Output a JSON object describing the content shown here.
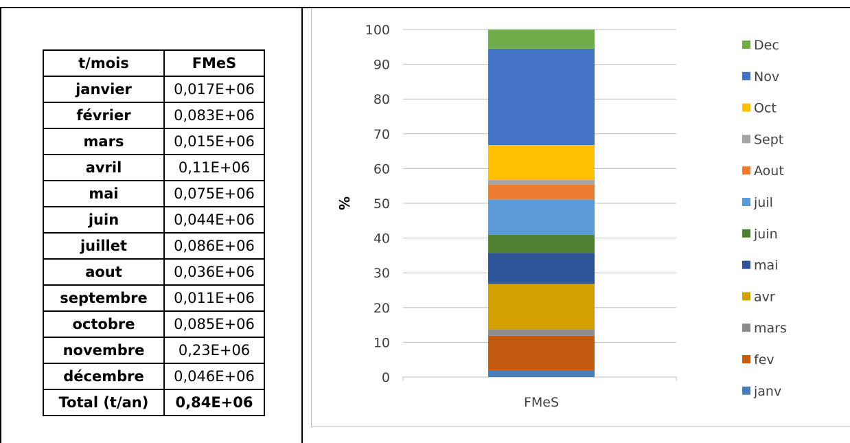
{
  "table": {
    "headers": [
      "t/mois",
      "FMeS"
    ],
    "rows": [
      {
        "month": "janvier",
        "value": "0,017E+06"
      },
      {
        "month": "février",
        "value": "0,083E+06"
      },
      {
        "month": "mars",
        "value": "0,015E+06"
      },
      {
        "month": "avril",
        "value": "0,11E+06"
      },
      {
        "month": "mai",
        "value": "0,075E+06"
      },
      {
        "month": "juin",
        "value": "0,044E+06"
      },
      {
        "month": "juillet",
        "value": "0,086E+06"
      },
      {
        "month": "aout",
        "value": "0,036E+06"
      },
      {
        "month": "septembre",
        "value": "0,011E+06"
      },
      {
        "month": "octobre",
        "value": "0,085E+06"
      },
      {
        "month": "novembre",
        "value": "0,23E+06"
      },
      {
        "month": "décembre",
        "value": "0,046E+06"
      }
    ],
    "total": {
      "month": "Total (t/an)",
      "value": "0,84E+06"
    }
  },
  "chart_data": {
    "type": "bar",
    "stacked": true,
    "categories": [
      "FMeS"
    ],
    "ylabel": "%",
    "xlabel": "",
    "ylim": [
      0,
      100
    ],
    "yticks": [
      0,
      10,
      20,
      30,
      40,
      50,
      60,
      70,
      80,
      90,
      100
    ],
    "grid": true,
    "legend_position": "right",
    "series": [
      {
        "name": "janv",
        "values": [
          2.0
        ],
        "color": "#4a7ebb"
      },
      {
        "name": "fev",
        "values": [
          9.9
        ],
        "color": "#c55a11"
      },
      {
        "name": "mars",
        "values": [
          1.8
        ],
        "color": "#8c8c8c"
      },
      {
        "name": "avr",
        "values": [
          13.1
        ],
        "color": "#d4a000"
      },
      {
        "name": "mai",
        "values": [
          8.9
        ],
        "color": "#2e5597"
      },
      {
        "name": "juin",
        "values": [
          5.2
        ],
        "color": "#4f7f30"
      },
      {
        "name": "juil",
        "values": [
          10.2
        ],
        "color": "#5b9bd5"
      },
      {
        "name": "Aout",
        "values": [
          4.3
        ],
        "color": "#ed7d31"
      },
      {
        "name": "Sept",
        "values": [
          1.3
        ],
        "color": "#a5a5a5"
      },
      {
        "name": "Oct",
        "values": [
          10.1
        ],
        "color": "#ffc000"
      },
      {
        "name": "Nov",
        "values": [
          27.7
        ],
        "color": "#4472c4"
      },
      {
        "name": "Dec",
        "values": [
          5.5
        ],
        "color": "#70ad47"
      }
    ]
  }
}
